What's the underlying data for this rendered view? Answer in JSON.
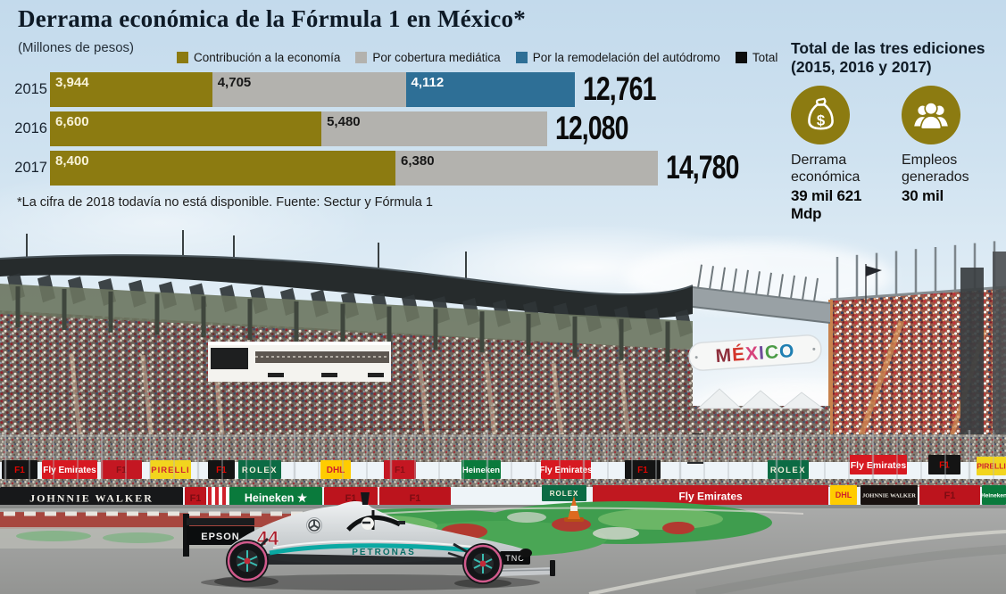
{
  "header": {
    "title": "Derrama económica de la Fórmula 1 en México*",
    "subtitle": "(Millones de pesos)"
  },
  "chart_data": {
    "type": "bar",
    "orientation": "horizontal",
    "stacked": true,
    "categories": [
      "2015",
      "2016",
      "2017"
    ],
    "series": [
      {
        "name": "Contribución a la economía",
        "color": "#8c7b11",
        "values": [
          3944,
          6600,
          8400
        ],
        "labels": [
          "3,944",
          "6,600",
          "8,400"
        ]
      },
      {
        "name": "Por cobertura mediática",
        "color": "#b3b2ae",
        "values": [
          4705,
          5480,
          6380
        ],
        "labels": [
          "4,705",
          "5,480",
          "6,380"
        ]
      },
      {
        "name": "Por la remodelación del autódromo",
        "color": "#2e6f96",
        "values": [
          4112,
          0,
          0
        ],
        "labels": [
          "4,112",
          "",
          ""
        ]
      }
    ],
    "totals": [
      12761,
      12080,
      14780
    ],
    "totals_formatted": [
      "12,761",
      "12,080",
      "14,780"
    ],
    "legend": [
      {
        "label": "Contribución a la economía",
        "color": "#8c7b11"
      },
      {
        "label": "Por cobertura mediática",
        "color": "#b3b2ae"
      },
      {
        "label": "Por la remodelación del autódromo",
        "color": "#2e6f96"
      },
      {
        "label": "Total",
        "color": "#0d0d0d"
      }
    ],
    "xmax": 14780,
    "title": "Derrama económica de la Fórmula 1 en México*",
    "xlabel": "Millones de pesos"
  },
  "footnote": "*La cifra de 2018 todavía no está disponible. Fuente: Sectur y Fórmula 1",
  "sidebar": {
    "title_line1": "Total de las tres ediciones",
    "title_line2": "(2015, 2016 y 2017)",
    "accent_color": "#8c7b11",
    "stats": [
      {
        "icon": "money-bag-icon",
        "label": "Derrama económica",
        "value": "39 mil 621 Mdp"
      },
      {
        "icon": "people-icon",
        "label": "Empleos generados",
        "value": "30 mil"
      }
    ]
  },
  "photo": {
    "mexico_letters": [
      {
        "ch": "M",
        "color": "#8e2f3c"
      },
      {
        "ch": "É",
        "color": "#d3362b"
      },
      {
        "ch": "X",
        "color": "#d6447c"
      },
      {
        "ch": "I",
        "color": "#6f4b9b"
      },
      {
        "ch": "C",
        "color": "#4a9b45"
      },
      {
        "ch": "O",
        "color": "#1f7fb2"
      }
    ],
    "tower_label": "D",
    "banners": [
      {
        "label": "F1",
        "bg": "#141414",
        "fg": "#e10600"
      },
      {
        "label": "Fly Emirates",
        "bg": "#d71921",
        "fg": "#ffffff"
      },
      {
        "label": "F1",
        "bg": "#c41722",
        "fg": "#841016"
      },
      {
        "label": "PIRELLI",
        "bg": "#f2d51e",
        "fg": "#cf2332"
      },
      {
        "label": "F1",
        "bg": "#141414",
        "fg": "#e10600"
      },
      {
        "label": "ROLEX",
        "bg": "#0c6b44",
        "fg": "#f4f0dd"
      },
      {
        "label": "DHL",
        "bg": "#ffcc00",
        "fg": "#d0202a"
      },
      {
        "label": "F1",
        "bg": "#c41722",
        "fg": "#841016"
      },
      {
        "label": "Heineken",
        "bg": "#0a7a3c",
        "fg": "#ffffff"
      },
      {
        "label": "Fly Emirates",
        "bg": "#d71921",
        "fg": "#ffffff"
      },
      {
        "label": "F1",
        "bg": "#141414",
        "fg": "#e10600"
      },
      {
        "label": "ROLEX",
        "bg": "#0c6b44",
        "fg": "#f4f0dd"
      },
      {
        "label": "Fly Emirates",
        "bg": "#d71921",
        "fg": "#ffffff"
      },
      {
        "label": "F1",
        "bg": "#141414",
        "fg": "#e10600"
      },
      {
        "label": "PIRELLI",
        "bg": "#f2d51e",
        "fg": "#cf2332"
      },
      {
        "label": "JOHNNIE WALKER",
        "bg": "#17181a",
        "fg": "#f1efe8"
      },
      {
        "label": "F1",
        "bg": "#bc141d",
        "fg": "#7c0c12"
      },
      {
        "label": "Heineken ★",
        "bg": "#0a7a3c",
        "fg": "#ffffff"
      },
      {
        "label": "F1",
        "bg": "#bc141d",
        "fg": "#7c0c12"
      },
      {
        "label": "F1",
        "bg": "#bc141d",
        "fg": "#7c0c12"
      },
      {
        "label": "ROLEX",
        "bg": "#0c6b44",
        "fg": "#f4f0dd"
      },
      {
        "label": "Fly Emirates",
        "bg": "#c01820",
        "fg": "#ffffff"
      },
      {
        "label": "DHL",
        "bg": "#ffcc00",
        "fg": "#d0202a"
      },
      {
        "label": "JOHNNIE WALKER",
        "bg": "#191210",
        "fg": "#efece4"
      },
      {
        "label": "F1",
        "bg": "#bc141d",
        "fg": "#7c0c12"
      },
      {
        "label": "Heineken",
        "bg": "#0a7a3c",
        "fg": "#ffffff"
      }
    ],
    "car": {
      "number": "44",
      "rear_wing_label": "EPSON",
      "sidepod_label": "PETRONAS",
      "front_label": "TNC"
    }
  }
}
